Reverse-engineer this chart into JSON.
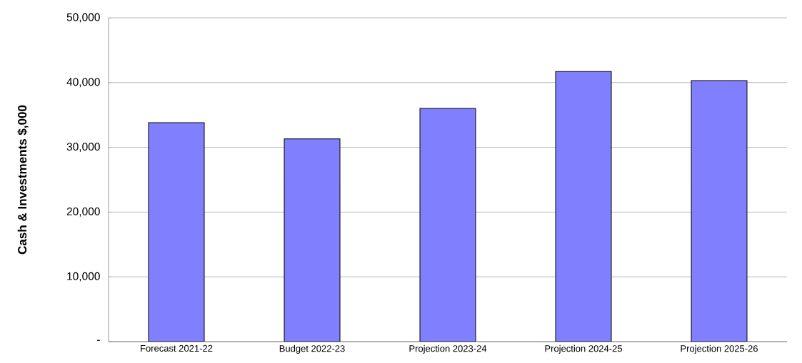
{
  "chart_data": {
    "type": "bar",
    "ylabel": "Cash & Investments $,000",
    "categories": [
      "Forecast 2021-22",
      "Budget 2022-23",
      "Projection 2023-24",
      "Projection 2024-25",
      "Projection 2025-26"
    ],
    "values": [
      33800,
      31300,
      36000,
      41700,
      40300
    ],
    "color": "#8080ff",
    "ylim": [
      0,
      50000
    ],
    "yticks": [
      {
        "value": 0,
        "label": "-"
      },
      {
        "value": 10000,
        "label": "10,000"
      },
      {
        "value": 20000,
        "label": "20,000"
      },
      {
        "value": 30000,
        "label": "30,000"
      },
      {
        "value": 40000,
        "label": "40,000"
      },
      {
        "value": 50000,
        "label": "50,000"
      }
    ],
    "grid": "y"
  }
}
